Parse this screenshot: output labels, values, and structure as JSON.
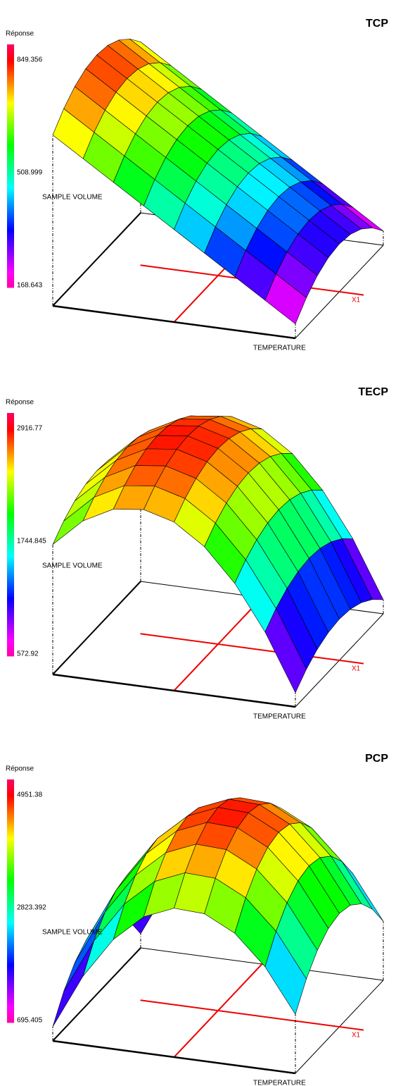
{
  "chart_data": [
    {
      "type": "surface",
      "title": "TCP",
      "colorbar_label": "Réponse",
      "x_label": "TEMPERATURE",
      "y_label": "SAMPLE VOLUME",
      "marker_label": "X1",
      "zlim": [
        168.643,
        849.356
      ],
      "zticks": [
        168.643,
        508.999,
        849.356
      ],
      "z": [
        [
          729.4,
          659.4,
          589.4,
          519.4,
          449.4,
          379.4,
          309.4,
          239.4,
          169.4
        ],
        [
          781.9,
          711.9,
          641.9,
          571.9,
          501.9,
          431.9,
          361.9,
          291.9,
          221.9
        ],
        [
          819.4,
          749.4,
          679.4,
          609.4,
          539.4,
          469.4,
          399.4,
          329.4,
          259.4
        ],
        [
          841.9,
          771.9,
          701.9,
          631.9,
          561.9,
          491.9,
          421.9,
          351.9,
          281.9
        ],
        [
          849.4,
          779.4,
          709.4,
          639.4,
          569.4,
          499.4,
          429.4,
          359.4,
          289.4
        ],
        [
          841.9,
          771.9,
          701.9,
          631.9,
          561.9,
          491.9,
          421.9,
          351.9,
          281.9
        ],
        [
          819.4,
          749.4,
          679.4,
          609.4,
          539.4,
          469.4,
          399.4,
          329.4,
          259.4
        ],
        [
          781.9,
          711.9,
          641.9,
          571.9,
          501.9,
          431.9,
          361.9,
          291.9,
          221.9
        ],
        [
          729.4,
          659.4,
          589.4,
          519.4,
          449.4,
          379.4,
          309.4,
          239.4,
          169.4
        ]
      ]
    },
    {
      "type": "surface",
      "title": "TECP",
      "colorbar_label": "Réponse",
      "x_label": "TEMPERATURE",
      "y_label": "SAMPLE VOLUME",
      "marker_label": "X1",
      "zlim": [
        572.92,
        2916.77
      ],
      "zticks": [
        572.92,
        1744.845,
        2916.77
      ],
      "z": [
        [
          2000.1,
          2342.0,
          2535.2,
          2579.8,
          2475.8,
          2223.1,
          1821.7,
          1271.7,
          573.0
        ],
        [
          2146.2,
          2488.1,
          2681.3,
          2725.9,
          2621.9,
          2369.2,
          1967.8,
          1417.8,
          719.1
        ],
        [
          2250.6,
          2592.5,
          2785.7,
          2830.3,
          2726.3,
          2473.6,
          2072.2,
          1522.2,
          823.5
        ],
        [
          2313.2,
          2655.1,
          2848.3,
          2892.9,
          2788.9,
          2536.2,
          2134.8,
          1584.8,
          886.1
        ],
        [
          2334.1,
          2676.0,
          2869.2,
          2913.8,
          2809.8,
          2557.1,
          2155.7,
          1605.7,
          907.0
        ],
        [
          2313.2,
          2655.1,
          2848.3,
          2892.9,
          2788.9,
          2536.2,
          2134.8,
          1584.8,
          886.1
        ],
        [
          2250.6,
          2592.5,
          2785.7,
          2830.3,
          2726.3,
          2473.6,
          2072.2,
          1522.2,
          823.5
        ],
        [
          2146.2,
          2488.1,
          2681.3,
          2725.9,
          2621.9,
          2369.2,
          1967.8,
          1417.8,
          719.1
        ],
        [
          2000.1,
          2342.0,
          2535.2,
          2579.8,
          2475.8,
          2223.1,
          1821.7,
          1271.7,
          573.0
        ]
      ]
    },
    {
      "type": "surface",
      "title": "PCP",
      "colorbar_label": "Réponse",
      "x_label": "TEMPERATURE",
      "y_label": "SAMPLE VOLUME",
      "marker_label": "X1",
      "zlim": [
        695.405,
        4951.38
      ],
      "zticks": [
        695.405,
        2823.392,
        4951.38
      ],
      "z": [
        [
          695.3,
          1920.1,
          2830.9,
          3427.6,
          3710.3,
          3678.9,
          3333.4,
          2673.9,
          1700.3
        ],
        [
          1227.3,
          2452.1,
          3362.9,
          3959.6,
          4242.3,
          4210.9,
          3865.4,
          3205.9,
          2232.3
        ],
        [
          1607.3,
          2832.1,
          3742.9,
          4339.6,
          4622.3,
          4590.9,
          4245.4,
          3585.9,
          2612.3
        ],
        [
          1835.3,
          3060.1,
          3970.9,
          4567.6,
          4850.3,
          4818.9,
          4473.4,
          3813.9,
          2840.3
        ],
        [
          1911.3,
          3136.1,
          4046.9,
          4643.6,
          4926.3,
          4894.9,
          4549.4,
          3889.9,
          2916.3
        ],
        [
          1835.3,
          3060.1,
          3970.9,
          4567.6,
          4850.3,
          4818.9,
          4473.4,
          3813.9,
          2840.3
        ],
        [
          1607.3,
          2832.1,
          3742.9,
          4339.6,
          4622.3,
          4590.9,
          4245.4,
          3585.9,
          2612.3
        ],
        [
          1227.3,
          2452.1,
          3362.9,
          3959.6,
          4242.3,
          4210.9,
          3865.4,
          3205.9,
          2232.3
        ],
        [
          695.3,
          1920.1,
          2830.9,
          3427.6,
          3710.3,
          3678.9,
          3333.4,
          2673.9,
          1700.3
        ]
      ]
    }
  ]
}
